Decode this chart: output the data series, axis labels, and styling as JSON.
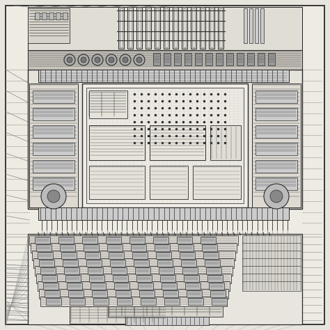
{
  "bg_color": "#e8e5de",
  "line_color": "#1a1a1a",
  "figsize": [
    4.74,
    4.74
  ],
  "dpi": 100,
  "paper_color": "#eeebe3",
  "dark_color": "#2a2a2a",
  "mid_color": "#888888",
  "light_color": "#cccccc"
}
